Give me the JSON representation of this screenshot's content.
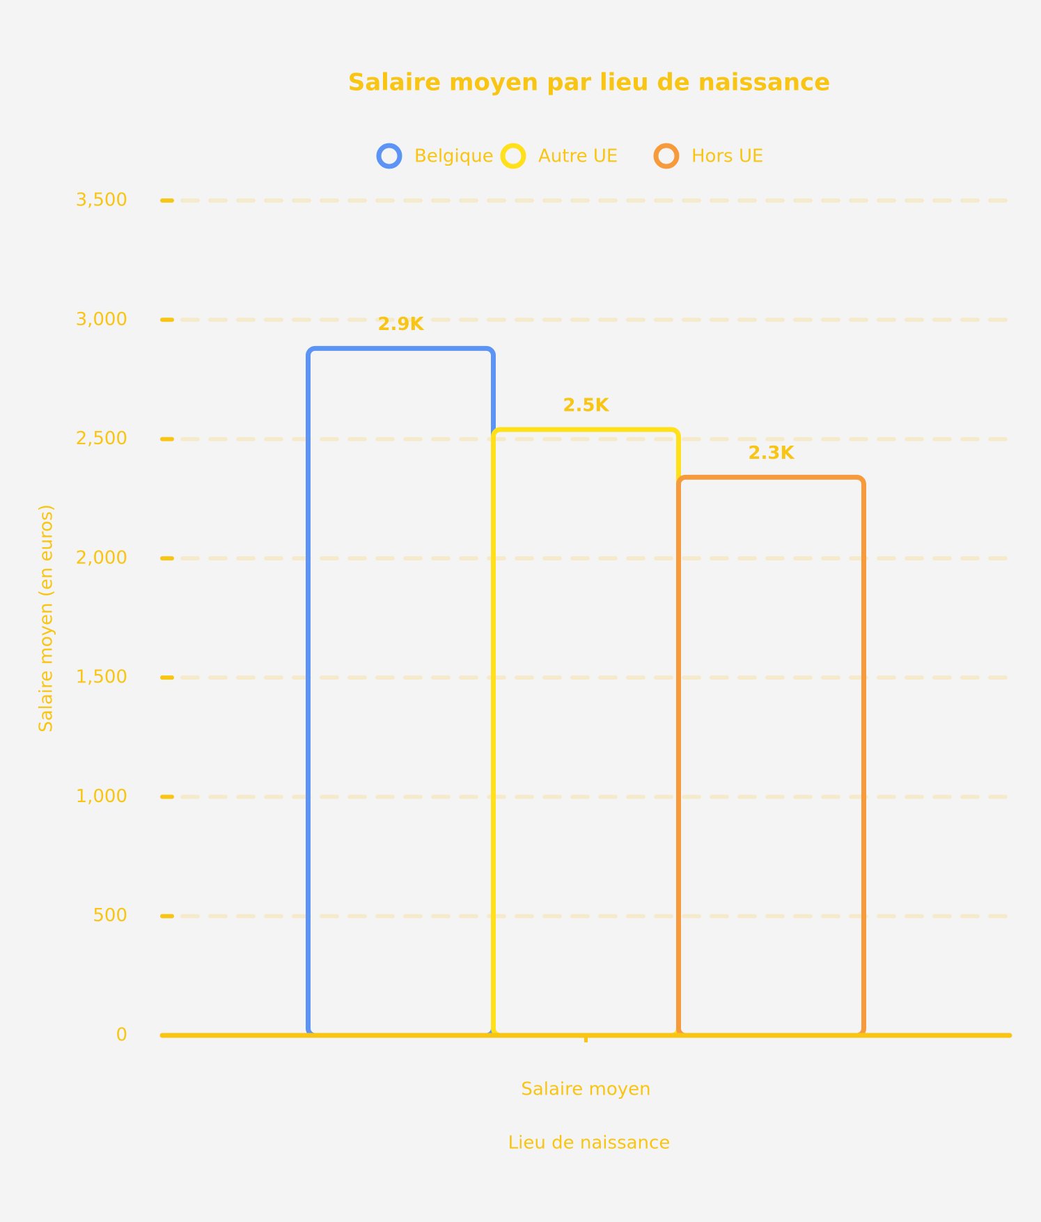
{
  "chart_data": {
    "type": "bar",
    "title": "Salaire moyen par lieu de naissance",
    "categories": [
      "Salaire moyen"
    ],
    "series": [
      {
        "name": "Belgique",
        "color": "#5b94f5",
        "values": [
          2880
        ],
        "value_labels": [
          "2.9K"
        ]
      },
      {
        "name": "Autre UE",
        "color": "#ffe01a",
        "values": [
          2540
        ],
        "value_labels": [
          "2.5K"
        ]
      },
      {
        "name": "Hors UE",
        "color": "#f79a3b",
        "values": [
          2340
        ],
        "value_labels": [
          "2.3K"
        ]
      }
    ],
    "xlabel": "Lieu de naissance",
    "ylabel": "Salaire moyen (en euros)",
    "ylim": [
      0,
      3500
    ],
    "yticks": [
      0,
      500,
      {
        "value": 1000,
        "label": "1,000"
      },
      {
        "value": 1500,
        "label": "1,500"
      },
      {
        "value": 2000,
        "label": "2,000"
      },
      {
        "value": 2500,
        "label": "2,500"
      },
      {
        "value": 3000,
        "label": "3,000"
      },
      {
        "value": 3500,
        "label": "3,500"
      }
    ],
    "grid": true,
    "legend": "top"
  }
}
